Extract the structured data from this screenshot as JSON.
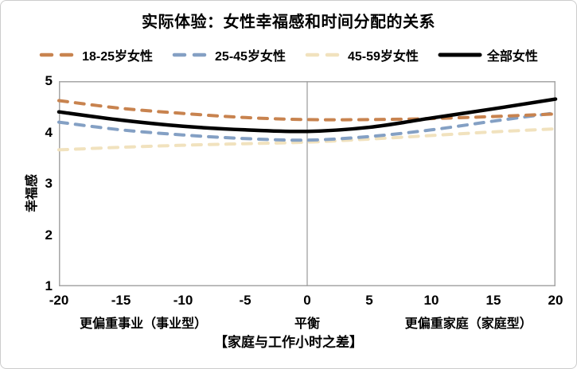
{
  "chart_data": {
    "type": "line",
    "title": "实际体验：女性幸福感和时间分配的关系",
    "xlabel": "【家庭与工作小时之差】",
    "ylabel": "幸福感",
    "xlim": [
      -20,
      20
    ],
    "ylim": [
      1,
      5
    ],
    "xticks": [
      -20,
      -15,
      -10,
      -5,
      0,
      5,
      10,
      15,
      20
    ],
    "yticks": [
      5,
      4,
      3,
      2,
      1
    ],
    "grid": false,
    "center_vline_x": 0,
    "legend_position": "top",
    "x": [
      -20,
      -15,
      -10,
      -5,
      0,
      5,
      10,
      15,
      20
    ],
    "series": [
      {
        "name": "18-25岁女性",
        "color": "#C8834F",
        "style": "dashed",
        "values": [
          4.62,
          4.47,
          4.37,
          4.29,
          4.25,
          4.25,
          4.27,
          4.31,
          4.36
        ]
      },
      {
        "name": "25-45岁女性",
        "color": "#84A0C4",
        "style": "dashed",
        "values": [
          4.2,
          4.05,
          3.95,
          3.88,
          3.85,
          3.92,
          4.05,
          4.22,
          4.38
        ]
      },
      {
        "name": "45-59岁女性",
        "color": "#F1E2BE",
        "style": "dashed",
        "values": [
          3.66,
          3.71,
          3.75,
          3.78,
          3.81,
          3.87,
          3.94,
          4.01,
          4.07
        ]
      },
      {
        "name": "全部女性",
        "color": "#000000",
        "style": "solid",
        "values": [
          4.4,
          4.24,
          4.12,
          4.05,
          4.02,
          4.1,
          4.28,
          4.46,
          4.65
        ]
      }
    ],
    "annotations": [
      {
        "text": "更偏重事业（事业型）",
        "x": -13.2
      },
      {
        "text": "平衡",
        "x": 0
      },
      {
        "text": "更偏重家庭（家庭型）",
        "x": 13.0
      }
    ],
    "colors": {
      "plot_border": "#A6A6A6",
      "center_line": "#A0A0A0",
      "background": "#FFFFFF"
    }
  }
}
